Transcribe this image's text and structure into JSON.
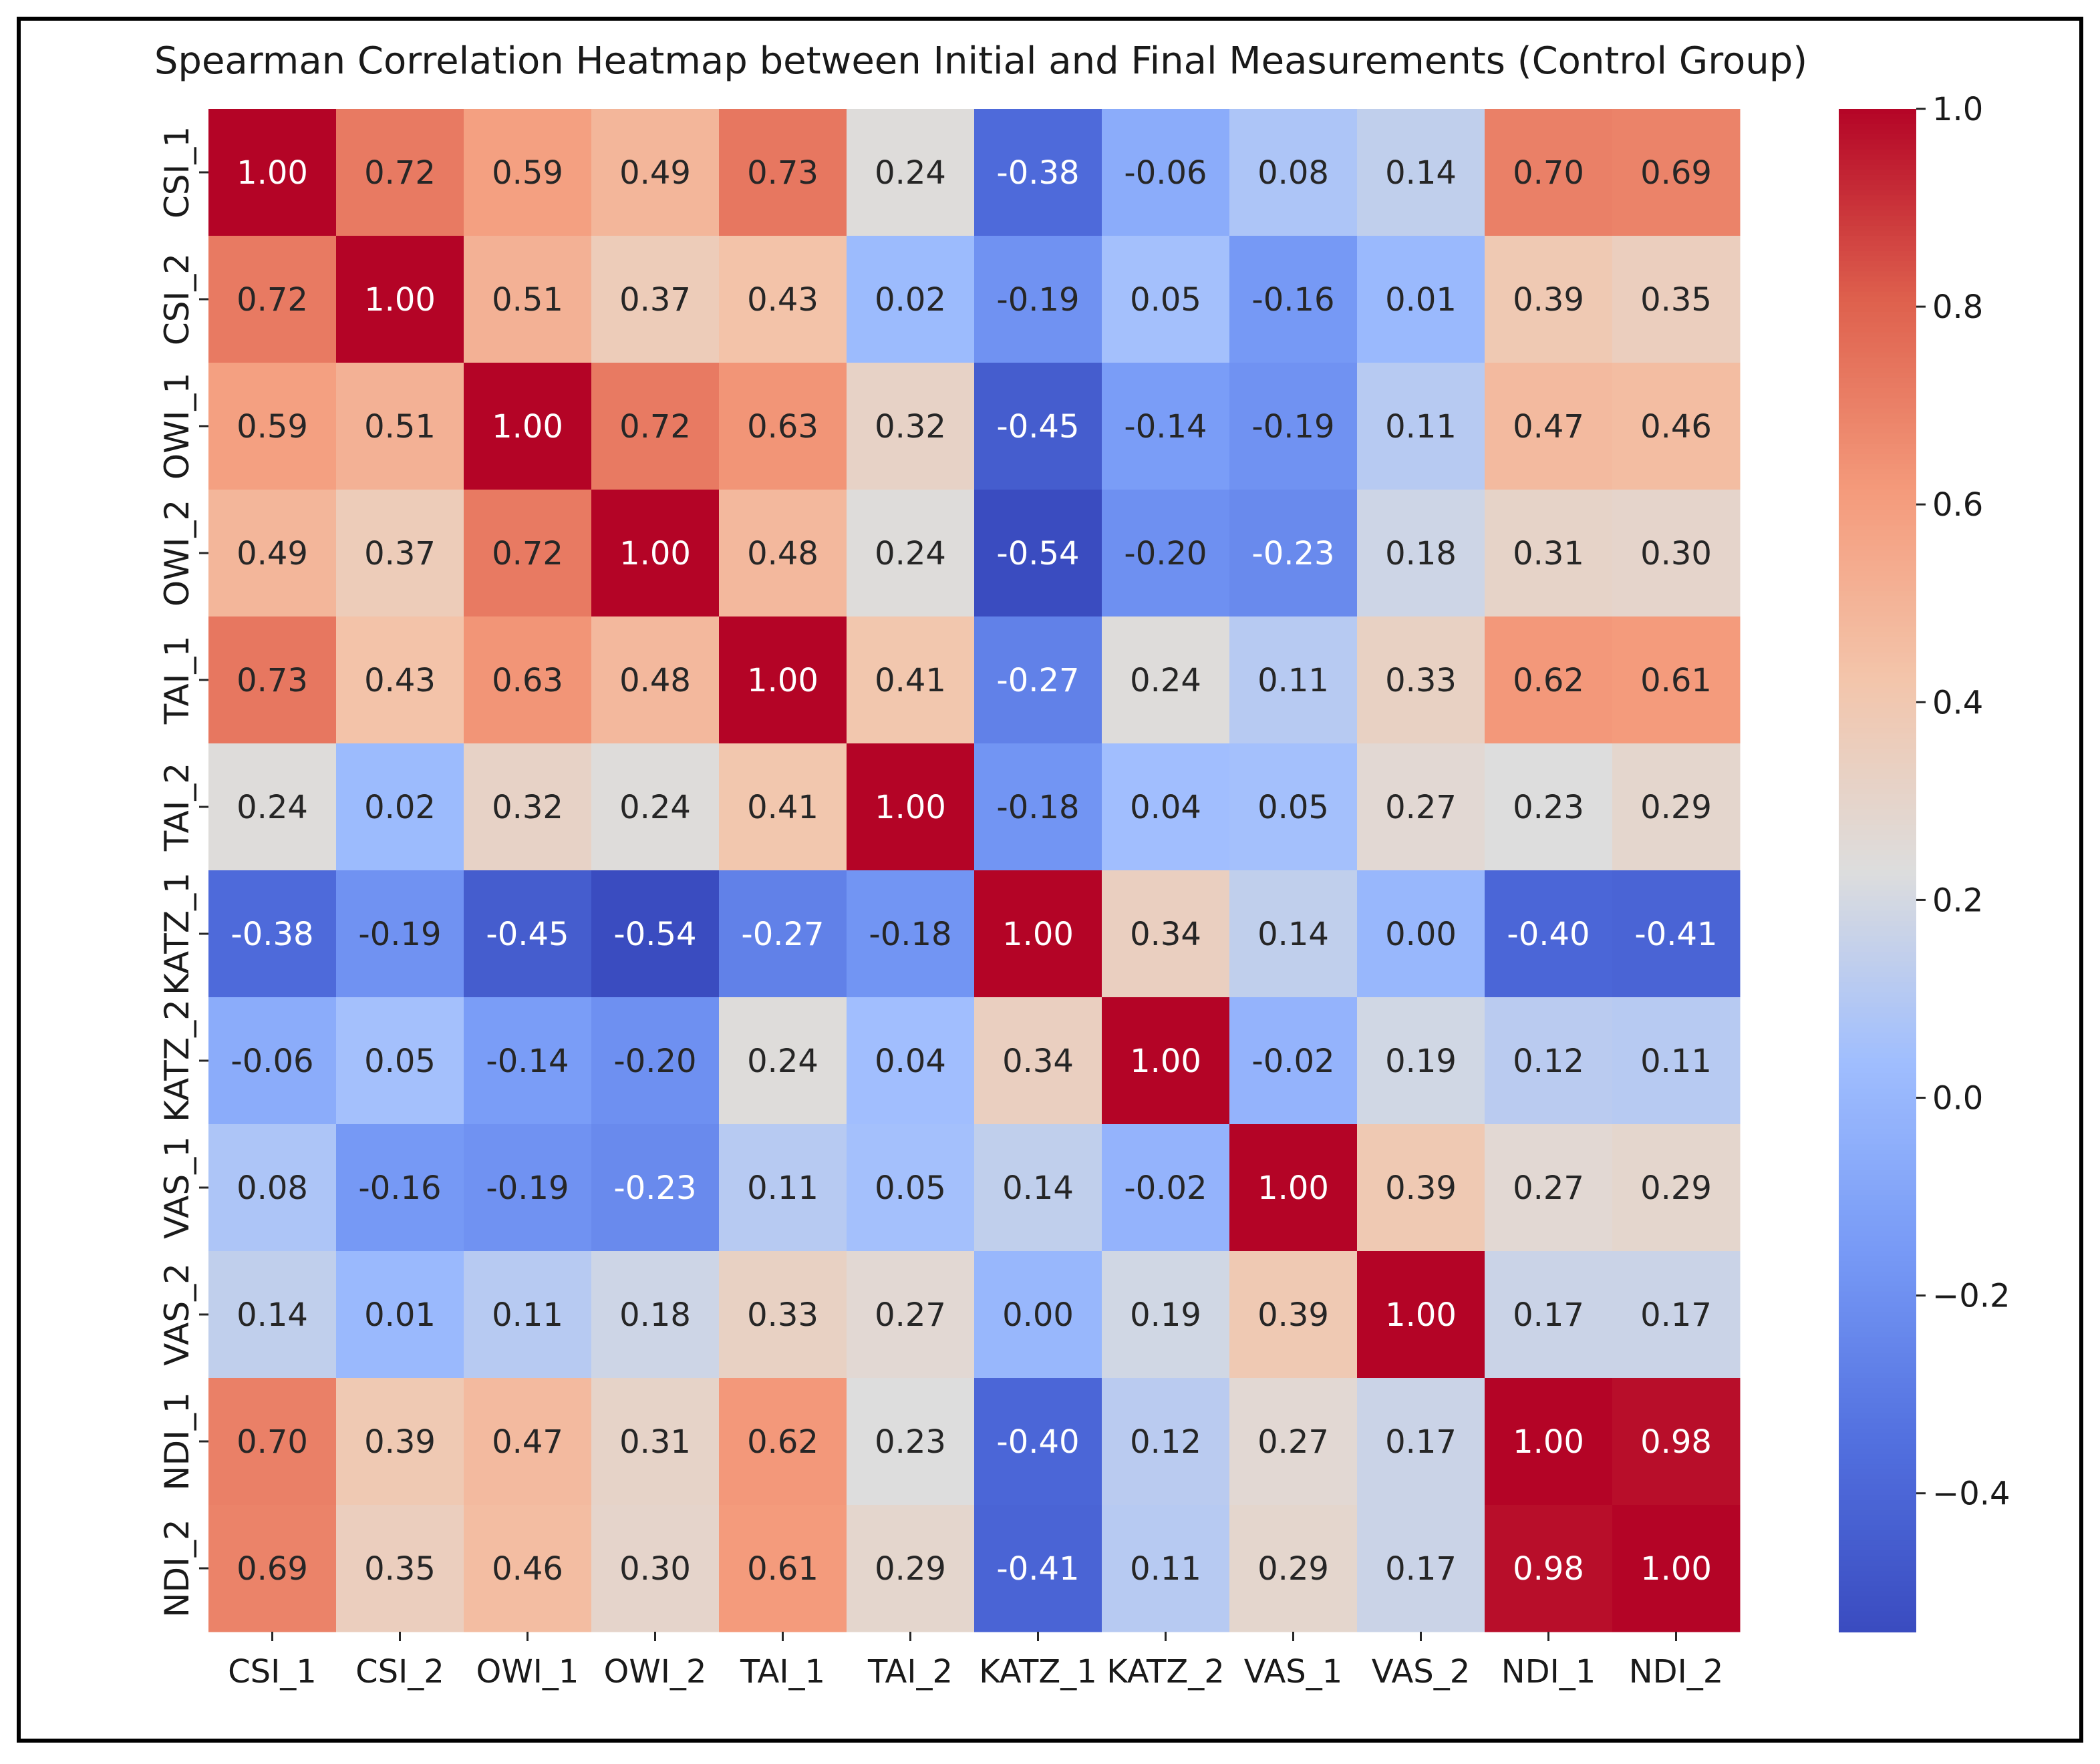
{
  "chart_data": {
    "type": "heatmap",
    "title": "Spearman Correlation Heatmap between Initial and Final Measurements (Control Group)",
    "labels": [
      "CSI_1",
      "CSI_2",
      "OWI_1",
      "OWI_2",
      "TAI_1",
      "TAI_2",
      "KATZ_1",
      "KATZ_2",
      "VAS_1",
      "VAS_2",
      "NDI_1",
      "NDI_2"
    ],
    "matrix": [
      [
        1.0,
        0.72,
        0.59,
        0.49,
        0.73,
        0.24,
        -0.38,
        -0.06,
        0.08,
        0.14,
        0.7,
        0.69
      ],
      [
        0.72,
        1.0,
        0.51,
        0.37,
        0.43,
        0.02,
        -0.19,
        0.05,
        -0.16,
        0.01,
        0.39,
        0.35
      ],
      [
        0.59,
        0.51,
        1.0,
        0.72,
        0.63,
        0.32,
        -0.45,
        -0.14,
        -0.19,
        0.11,
        0.47,
        0.46
      ],
      [
        0.49,
        0.37,
        0.72,
        1.0,
        0.48,
        0.24,
        -0.54,
        -0.2,
        -0.23,
        0.18,
        0.31,
        0.3
      ],
      [
        0.73,
        0.43,
        0.63,
        0.48,
        1.0,
        0.41,
        -0.27,
        0.24,
        0.11,
        0.33,
        0.62,
        0.61
      ],
      [
        0.24,
        0.02,
        0.32,
        0.24,
        0.41,
        1.0,
        -0.18,
        0.04,
        0.05,
        0.27,
        0.23,
        0.29
      ],
      [
        -0.38,
        -0.19,
        -0.45,
        -0.54,
        -0.27,
        -0.18,
        1.0,
        0.34,
        0.14,
        0.0,
        -0.4,
        -0.41
      ],
      [
        -0.06,
        0.05,
        -0.14,
        -0.2,
        0.24,
        0.04,
        0.34,
        1.0,
        -0.02,
        0.19,
        0.12,
        0.11
      ],
      [
        0.08,
        -0.16,
        -0.19,
        -0.23,
        0.11,
        0.05,
        0.14,
        -0.02,
        1.0,
        0.39,
        0.27,
        0.29
      ],
      [
        0.14,
        0.01,
        0.11,
        0.18,
        0.33,
        0.27,
        0.0,
        0.19,
        0.39,
        1.0,
        0.17,
        0.17
      ],
      [
        0.7,
        0.39,
        0.47,
        0.31,
        0.62,
        0.23,
        -0.4,
        0.12,
        0.27,
        0.17,
        1.0,
        0.98
      ],
      [
        0.69,
        0.35,
        0.46,
        0.3,
        0.61,
        0.29,
        -0.41,
        0.11,
        0.29,
        0.17,
        0.98,
        1.0
      ]
    ],
    "colormap": "coolwarm",
    "vmin": -0.54,
    "vmax": 1.0,
    "colorbar_ticks": [
      1.0,
      0.8,
      0.6,
      0.4,
      0.2,
      0.0,
      -0.2,
      -0.4
    ],
    "colorbar_tick_labels": [
      "1.0",
      "0.8",
      "0.6",
      "0.4",
      "0.2",
      "0.0",
      "−0.2",
      "−0.4"
    ],
    "annotation_format": "0.00",
    "xlabel": "",
    "ylabel": ""
  }
}
